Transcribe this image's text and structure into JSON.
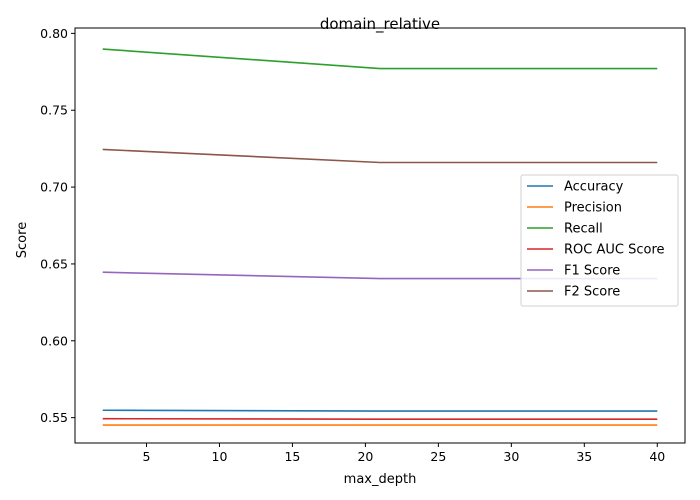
{
  "chart_data": {
    "type": "line",
    "title": "domain_relative",
    "xlabel": "max_depth",
    "ylabel": "Score",
    "x": [
      2,
      21,
      40
    ],
    "xlim": [
      0.1,
      41.9
    ],
    "ylim": [
      0.5335,
      0.8035
    ],
    "xticks": [
      5,
      10,
      15,
      20,
      25,
      30,
      35,
      40
    ],
    "yticks": [
      0.55,
      0.6,
      0.65,
      0.7,
      0.75,
      0.8
    ],
    "ytick_labels": [
      "0.55",
      "0.60",
      "0.65",
      "0.70",
      "0.75",
      "0.80"
    ],
    "grid": false,
    "legend_position": "center-right",
    "series": [
      {
        "name": "Accuracy",
        "color": "#1f77b4",
        "values": [
          0.5548,
          0.5543,
          0.5543
        ]
      },
      {
        "name": "Precision",
        "color": "#ff7f0e",
        "values": [
          0.5452,
          0.5452,
          0.5452
        ]
      },
      {
        "name": "Recall",
        "color": "#2ca02c",
        "values": [
          0.7898,
          0.7771,
          0.7771
        ]
      },
      {
        "name": "ROC AUC Score",
        "color": "#d62728",
        "values": [
          0.5493,
          0.549,
          0.549
        ]
      },
      {
        "name": "F1 Score",
        "color": "#9467bd",
        "values": [
          0.6446,
          0.6405,
          0.6405
        ]
      },
      {
        "name": "F2 Score",
        "color": "#8c564b",
        "values": [
          0.7245,
          0.716,
          0.716
        ]
      }
    ]
  }
}
